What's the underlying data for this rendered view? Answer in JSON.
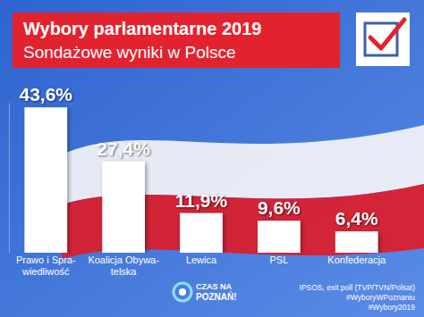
{
  "chart_data": {
    "type": "bar",
    "title": "Wybory parlamentarne 2019",
    "subtitle": "Sondażowe wyniki w Polsce",
    "categories": [
      "Prawo i Spra-\nwiedliwość",
      "Koalicja Obywa-\ntelska",
      "Lewica",
      "PSL",
      "Konfederacja"
    ],
    "values": [
      43.6,
      27.4,
      11.9,
      9.6,
      6.4
    ],
    "value_labels": [
      "43,6%",
      "27,4%",
      "11,9%",
      "9,6%",
      "6,4%"
    ],
    "color": "#ffffff",
    "ylim": [
      0,
      45
    ],
    "data_labels": true,
    "tick_labels": "x",
    "grid": false,
    "annotations": [
      "CZAS NA",
      "POZNAŃ!",
      "IPSOS, exit poll (TVP/TVN/Polsat)",
      "#WyboryWPoznaniu",
      "#Wybory2019"
    ]
  }
}
